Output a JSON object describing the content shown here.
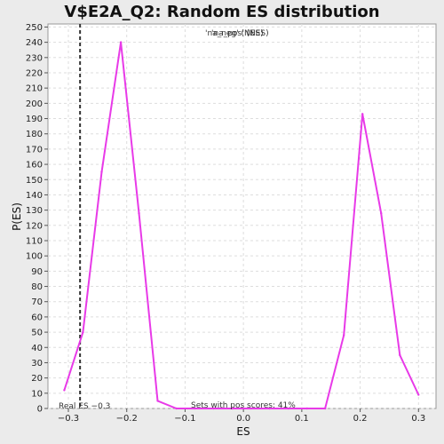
{
  "chart_data": {
    "type": "line",
    "title": "V$E2A_Q2: Random ES distribution",
    "xlabel": "ES",
    "ylabel": "P(ES)",
    "xlim": [
      -0.335,
      0.33
    ],
    "ylim": [
      0,
      252
    ],
    "x_ticks": [
      {
        "value": -0.3,
        "label": "−0.3"
      },
      {
        "value": -0.2,
        "label": "−0.2"
      },
      {
        "value": -0.1,
        "label": "−0.1"
      },
      {
        "value": 0.0,
        "label": "0.0"
      },
      {
        "value": 0.1,
        "label": "0.1"
      },
      {
        "value": 0.2,
        "label": "0.2"
      },
      {
        "value": 0.3,
        "label": "0.3"
      }
    ],
    "y_ticks": [
      0,
      10,
      20,
      30,
      40,
      50,
      60,
      70,
      80,
      90,
      100,
      110,
      120,
      130,
      140,
      150,
      160,
      170,
      180,
      190,
      200,
      210,
      220,
      230,
      240,
      250
    ],
    "grid": true,
    "legend": {
      "position": "top",
      "entries": [
        "'na_neg' (NES)",
        "'na_pos' (NES)"
      ]
    },
    "series": [
      {
        "name": "'na_pos' (NES)",
        "color": "#e83ae8",
        "x": [
          -0.307,
          -0.275,
          -0.243,
          -0.21,
          -0.179,
          -0.147,
          -0.115,
          -0.083,
          -0.051,
          -0.019,
          0.013,
          0.045,
          0.077,
          0.109,
          0.14,
          0.172,
          0.204,
          0.236,
          0.268,
          0.3
        ],
        "y": [
          12,
          50,
          155,
          240,
          128,
          5,
          0,
          0,
          0,
          0,
          0,
          0,
          0,
          0,
          0,
          48,
          193,
          128,
          35,
          9
        ]
      }
    ],
    "real_es": {
      "value": -0.28,
      "label": "Real ES −0.3",
      "color": "#333333"
    },
    "annotation": "Sets with pos scores: 41%"
  }
}
